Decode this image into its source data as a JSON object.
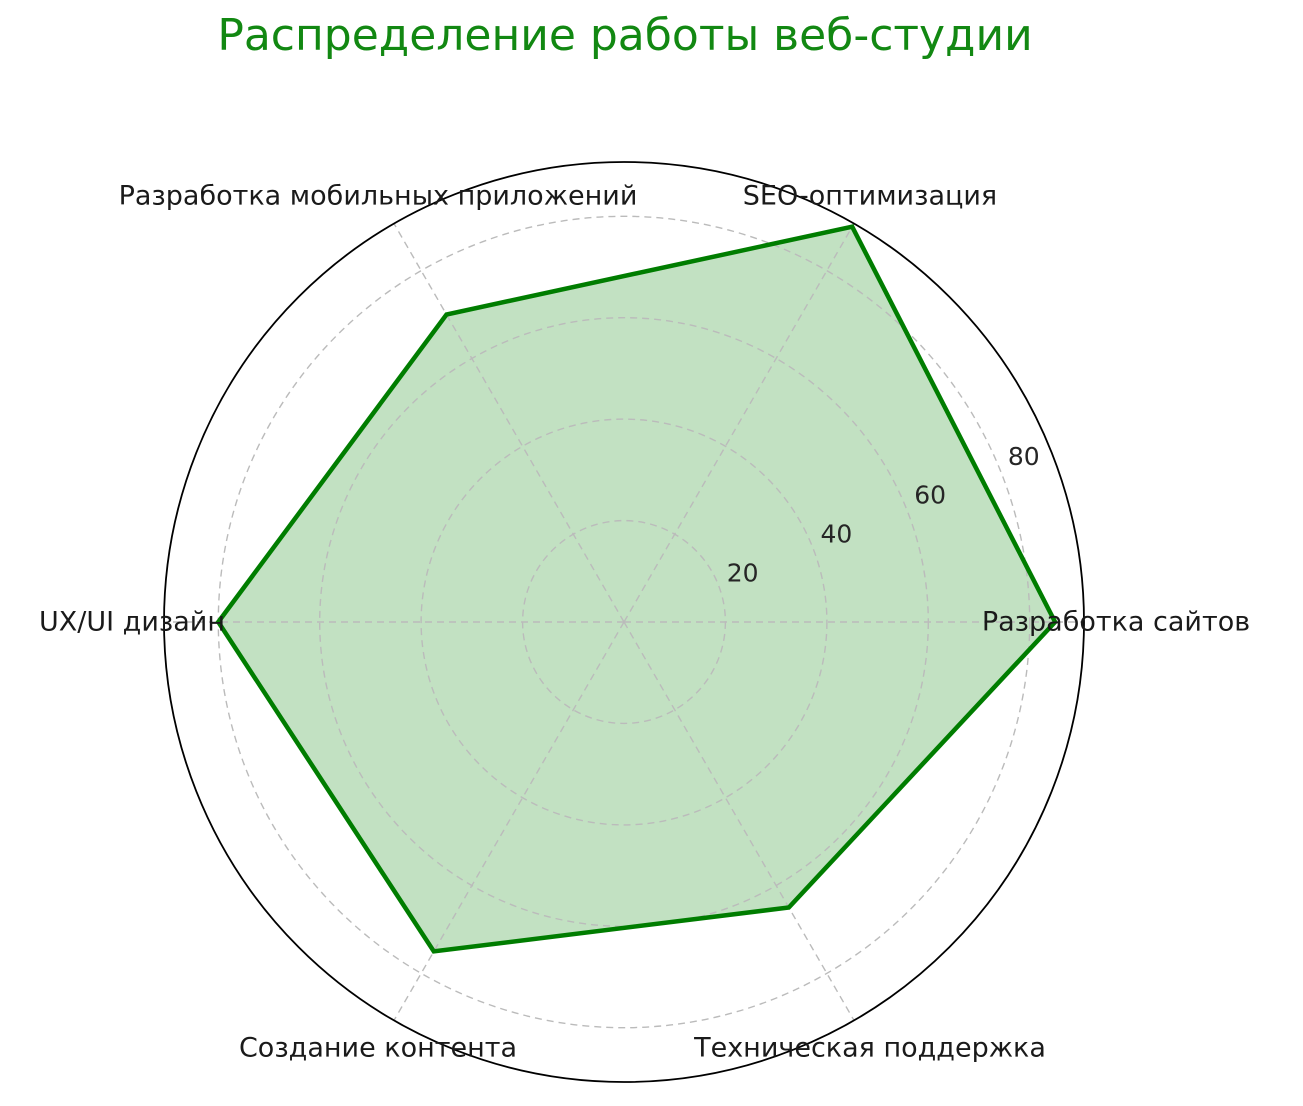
{
  "chart_data": {
    "type": "radar",
    "title": "Распределение работы веб-студии",
    "categories": [
      "Разработка сайтов",
      "SEO-оптимизация",
      "Разработка мобильных приложений",
      "UX/UI дизайн",
      "Создание контента",
      "Техническая поддержка"
    ],
    "values": [
      85,
      90,
      70,
      80,
      75,
      65
    ],
    "series": [
      {
        "name": "Распределение работы",
        "values": [
          85,
          90,
          70,
          80,
          75,
          65
        ]
      }
    ],
    "radial_ticks": [
      20,
      40,
      60,
      80
    ],
    "rlim": [
      0,
      90
    ],
    "angles_deg": [
      0,
      60,
      120,
      180,
      240,
      300
    ],
    "grid": "on",
    "legend": "none",
    "colors": {
      "title_color": "#128812",
      "line_color": "#007d00",
      "fill_color": "#008000",
      "fill_opacity": 0.24,
      "grid_color": "#bbbbbb",
      "spine_color": "#000000",
      "category_label_color": "#1a1a1a",
      "tick_label_color": "#262626",
      "background": "#ffffff"
    }
  }
}
